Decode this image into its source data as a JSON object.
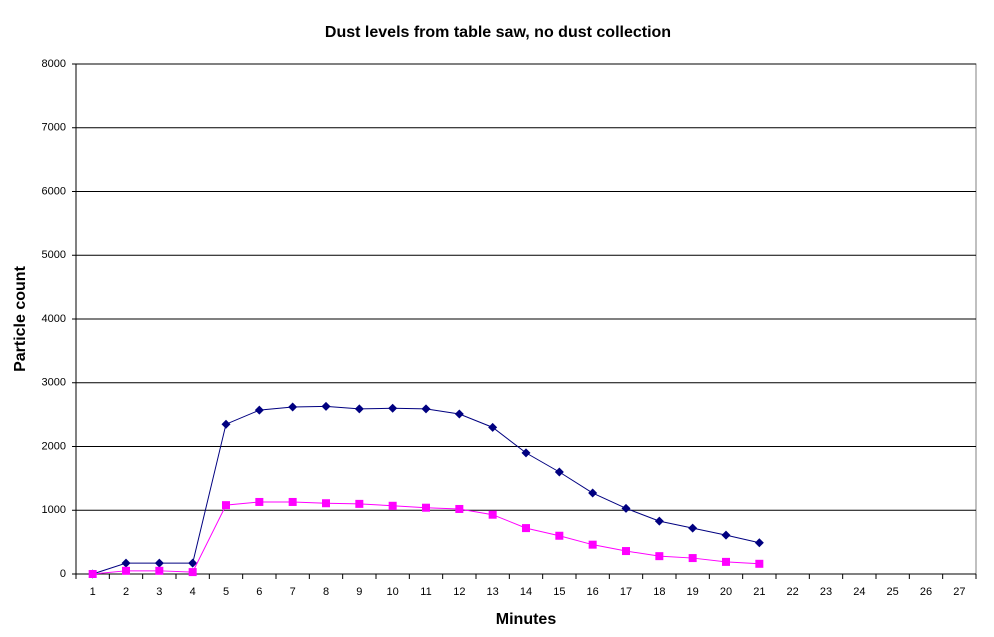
{
  "chart_data": {
    "type": "line",
    "title": "Dust levels from table saw, no dust collection",
    "x_label": "Minutes",
    "y_label": "Particle count",
    "categories": [
      1,
      2,
      3,
      4,
      5,
      6,
      7,
      8,
      9,
      10,
      11,
      12,
      13,
      14,
      15,
      16,
      17,
      18,
      19,
      20,
      21,
      22,
      23,
      24,
      25,
      26,
      27
    ],
    "series": [
      {
        "color": "#000080",
        "marker": "diamond",
        "values": [
          0,
          170,
          170,
          170,
          2350,
          2570,
          2620,
          2630,
          2590,
          2600,
          2590,
          2510,
          2300,
          1900,
          1600,
          1270,
          1030,
          830,
          720,
          610,
          490,
          null,
          null,
          null,
          null,
          null,
          null
        ]
      },
      {
        "color": "#ff00ff",
        "marker": "square",
        "values": [
          0,
          50,
          50,
          30,
          1080,
          1130,
          1130,
          1110,
          1100,
          1070,
          1040,
          1020,
          930,
          720,
          600,
          460,
          360,
          280,
          250,
          190,
          160,
          null,
          null,
          null,
          null,
          null,
          null
        ]
      }
    ],
    "ylim": [
      0,
      8000
    ],
    "yticks": [
      0,
      1000,
      2000,
      3000,
      4000,
      5000,
      6000,
      7000,
      8000
    ],
    "grid": true
  }
}
